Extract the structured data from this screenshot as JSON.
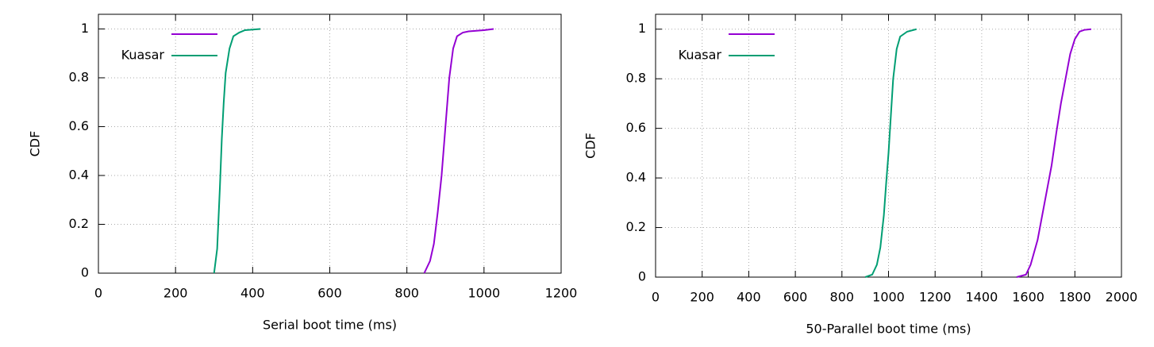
{
  "chart_data": [
    {
      "type": "line",
      "ylabel": "CDF",
      "xlabel": "Serial boot time (ms)",
      "xlim": [
        0,
        1200
      ],
      "ylim": [
        0,
        1.06
      ],
      "xticks": [
        0,
        200,
        400,
        600,
        800,
        1000,
        1200
      ],
      "yticks": [
        0,
        0.2,
        0.4,
        0.6,
        0.8,
        1
      ],
      "grid": true,
      "legend": "top-left",
      "series": [
        {
          "name": null,
          "color": "#9400d3",
          "x": [
            845,
            860,
            870,
            880,
            890,
            900,
            910,
            920,
            930,
            945,
            960,
            1000,
            1025
          ],
          "values": [
            0,
            0.05,
            0.12,
            0.25,
            0.4,
            0.6,
            0.8,
            0.92,
            0.97,
            0.985,
            0.99,
            0.995,
            1
          ]
        },
        {
          "name": "Kuasar",
          "color": "#009e73",
          "x": [
            300,
            308,
            315,
            320,
            325,
            330,
            340,
            350,
            365,
            380,
            420
          ],
          "values": [
            0,
            0.1,
            0.35,
            0.55,
            0.7,
            0.82,
            0.92,
            0.97,
            0.985,
            0.995,
            1
          ]
        }
      ]
    },
    {
      "type": "line",
      "ylabel": "CDF",
      "xlabel": "50-Parallel boot time (ms)",
      "xlim": [
        0,
        2000
      ],
      "ylim": [
        0,
        1.06
      ],
      "xticks": [
        0,
        200,
        400,
        600,
        800,
        1000,
        1200,
        1400,
        1600,
        1800,
        2000
      ],
      "yticks": [
        0,
        0.2,
        0.4,
        0.6,
        0.8,
        1
      ],
      "grid": true,
      "legend": "top-left",
      "series": [
        {
          "name": null,
          "color": "#9400d3",
          "x": [
            1550,
            1590,
            1610,
            1640,
            1670,
            1700,
            1720,
            1740,
            1760,
            1780,
            1800,
            1820,
            1840,
            1870
          ],
          "values": [
            0,
            0.01,
            0.05,
            0.15,
            0.3,
            0.45,
            0.58,
            0.7,
            0.8,
            0.9,
            0.96,
            0.99,
            0.997,
            1
          ]
        },
        {
          "name": "Kuasar",
          "color": "#009e73",
          "x": [
            900,
            930,
            950,
            965,
            980,
            990,
            1000,
            1010,
            1020,
            1035,
            1050,
            1080,
            1120
          ],
          "values": [
            0,
            0.01,
            0.05,
            0.12,
            0.25,
            0.38,
            0.5,
            0.65,
            0.8,
            0.92,
            0.97,
            0.99,
            1
          ]
        }
      ]
    }
  ]
}
